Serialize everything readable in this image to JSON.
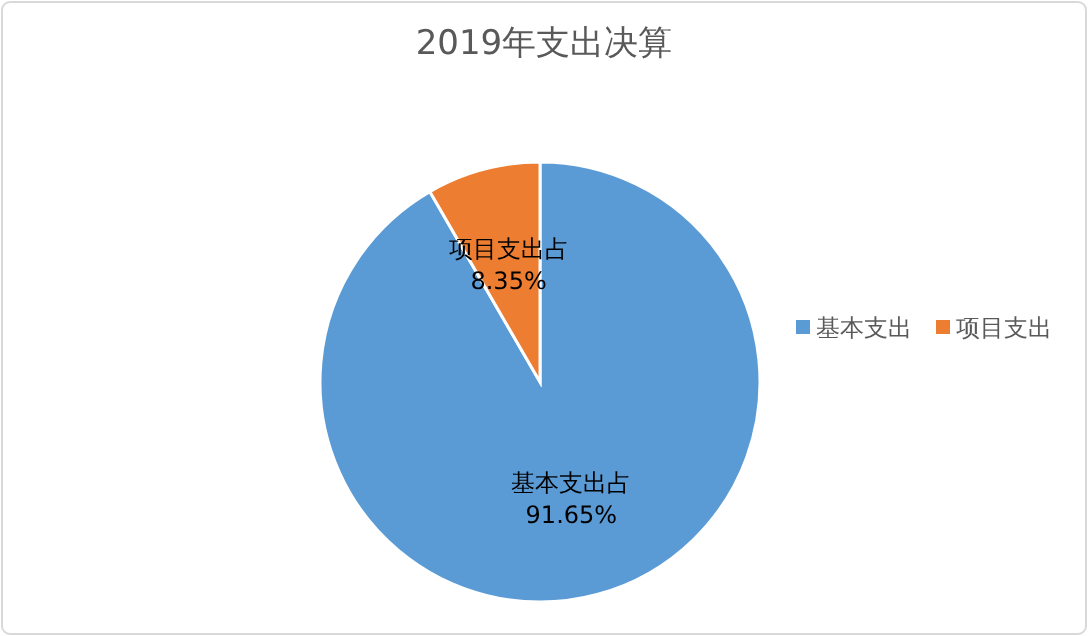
{
  "chart_data": {
    "type": "pie",
    "title": "2019年支出决算",
    "categories": [
      "基本支出",
      "项目支出"
    ],
    "values": [
      91.65,
      8.35
    ],
    "colors": [
      "#5b9bd5",
      "#ed7d31"
    ],
    "value_labels": [
      "基本支出占 91.65%",
      "项目支出占 8.35%"
    ],
    "legend": "right"
  }
}
